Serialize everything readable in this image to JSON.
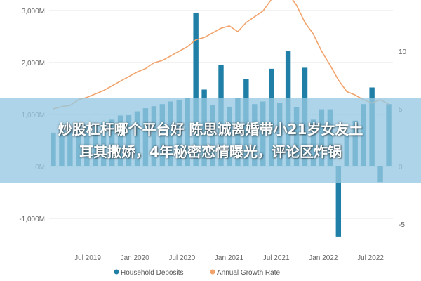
{
  "banner": {
    "line1": "炒股杠杆哪个平台好 陈思诚离婚带小21岁女友土",
    "line2": "耳其撒娇，4年秘密恋情曝光，评论区炸锅"
  },
  "chart_data": {
    "type": "bar+line",
    "title": "",
    "xlabel": "",
    "ylabel": "",
    "y_left": {
      "ticks": [
        -1000,
        0,
        1000,
        2000,
        3000
      ],
      "tick_labels": [
        "-1,000M",
        "0M",
        "1,000M",
        "2,000M",
        "3,000M"
      ],
      "ylim": [
        -1450,
        3050
      ]
    },
    "y_right": {
      "ticks": [
        -5,
        0,
        5,
        10
      ],
      "tick_labels": [
        "-5",
        "0",
        "5",
        "10"
      ]
    },
    "x_tick_labels": [
      "Jul 2019",
      "Jan 2020",
      "Jul 2020",
      "Jan 2021",
      "Jul 2021",
      "Jan 2022",
      "Jul 2022"
    ],
    "grid": "horizontal",
    "legend_position": "bottom",
    "colors": {
      "bars": "#1f7fa6",
      "line": "#f2a36b",
      "grid": "#e6e6e6"
    },
    "series": [
      {
        "name": "Household Deposits",
        "kind": "bar",
        "axis": "left",
        "values": [
          650,
          700,
          720,
          760,
          800,
          820,
          860,
          900,
          980,
          1000,
          1060,
          1120,
          1160,
          1200,
          1250,
          1280,
          1320,
          2960,
          1480,
          1180,
          1950,
          1150,
          1320,
          1680,
          1200,
          1250,
          1880,
          1220,
          2220,
          1140,
          1900,
          900,
          1100,
          1100,
          -1350,
          600,
          880,
          1200,
          1520,
          -300,
          1200
        ]
      },
      {
        "name": "Annual Growth Rate",
        "kind": "line",
        "axis": "right",
        "values": [
          5.0,
          5.2,
          5.3,
          5.8,
          6.0,
          6.3,
          6.6,
          7.0,
          7.4,
          7.8,
          8.2,
          8.5,
          9.0,
          9.2,
          9.6,
          10.0,
          10.4,
          11.0,
          11.2,
          11.6,
          12.0,
          12.2,
          11.7,
          12.5,
          13.0,
          13.5,
          14.5,
          15.3,
          15.0,
          14.0,
          12.5,
          11.5,
          10.0,
          8.8,
          7.5,
          6.5,
          6.2,
          5.8,
          5.5,
          5.8,
          5.4
        ]
      }
    ]
  }
}
